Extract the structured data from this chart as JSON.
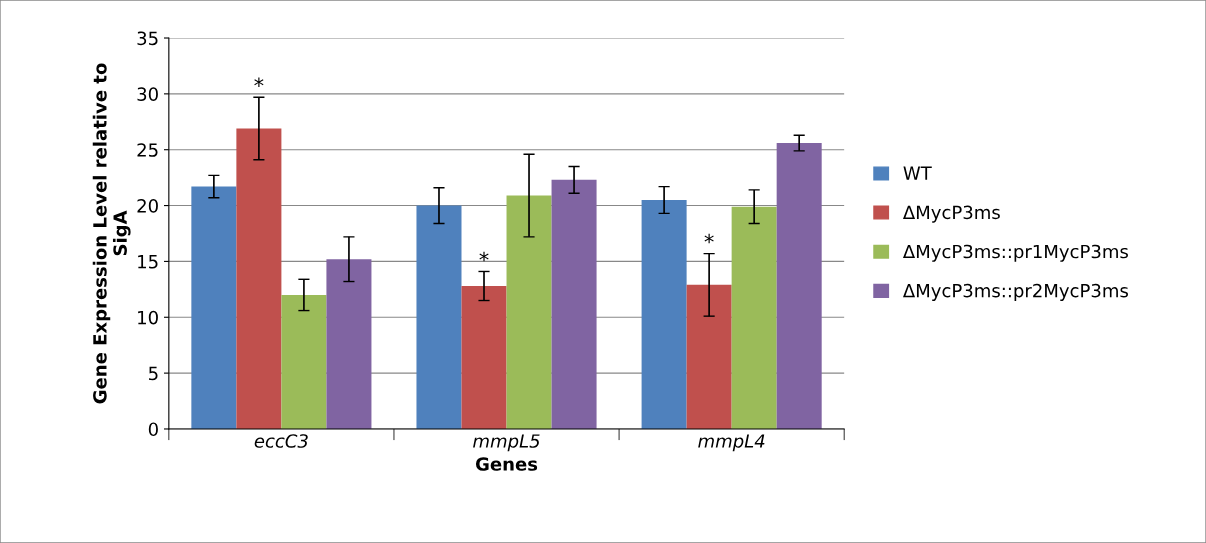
{
  "chart_data": {
    "type": "bar",
    "xlabel": "Genes",
    "ylabel": "Gene Expression Level relative to\nSigA",
    "categories": [
      "eccC3",
      "mmpL5",
      "mmpL4"
    ],
    "series": [
      {
        "name": "WT",
        "color": "#4f81bd",
        "values": [
          21.7,
          20.0,
          20.5
        ],
        "errors": [
          1.0,
          1.6,
          1.2
        ]
      },
      {
        "name": "ΔMycP3ms",
        "color": "#c0504d",
        "values": [
          26.9,
          12.8,
          12.9
        ],
        "errors": [
          2.8,
          1.3,
          2.8
        ]
      },
      {
        "name": "ΔMycP3ms::pr1MycP3ms",
        "color": "#9bbb59",
        "values": [
          12.0,
          20.9,
          19.9
        ],
        "errors": [
          1.4,
          3.7,
          1.5
        ]
      },
      {
        "name": "ΔMycP3ms::pr2MycP3ms",
        "color": "#8064a2",
        "values": [
          15.2,
          22.3,
          25.6
        ],
        "errors": [
          2.0,
          1.2,
          0.7
        ]
      }
    ],
    "annotations": [
      {
        "text": "*",
        "x": "eccC3",
        "y": 26.9
      },
      {
        "text": "*",
        "x": "mmpL5",
        "y": 12.8
      },
      {
        "text": "*",
        "x": "mmpL4",
        "y": 12.9
      }
    ],
    "ylim": [
      0,
      35
    ],
    "yticks": [
      0,
      5,
      10,
      15,
      20,
      25,
      30,
      35
    ],
    "grid": "y",
    "legend": "right"
  }
}
